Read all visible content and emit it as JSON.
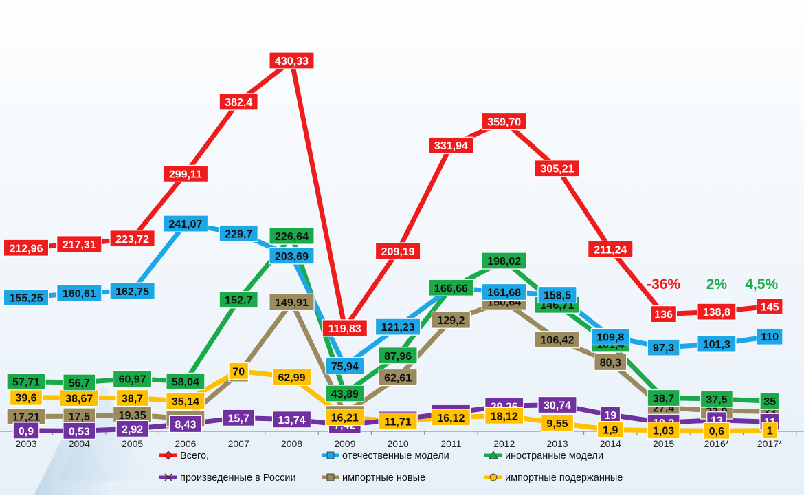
{
  "chart_data": {
    "type": "line",
    "title": "",
    "xlabel": "",
    "ylabel": "",
    "x": [
      "2003",
      "2004",
      "2005",
      "2006",
      "2007",
      "2008",
      "2009",
      "2010",
      "2011",
      "2012",
      "2013",
      "2014",
      "2015",
      "2016*",
      "2017*"
    ],
    "ylim": [
      0,
      450
    ],
    "grid": false,
    "legend_position": "bottom",
    "series": [
      {
        "name": "Всего,",
        "color": "#ee1c1c",
        "marker": "diamond",
        "values": [
          212.96,
          217.31,
          223.72,
          299.11,
          382.4,
          430.33,
          119.83,
          209.19,
          331.94,
          359.7,
          305.21,
          211.24,
          136,
          138.8,
          145
        ],
        "labels": [
          "212,96",
          "217,31",
          "223,72",
          "299,11",
          "382,4",
          "430,33",
          "119,83",
          "209,19",
          "331,94",
          "359,70",
          "305,21",
          "211,24",
          "136",
          "138,8",
          "145"
        ]
      },
      {
        "name": "отечественные модели",
        "color": "#1ea7e6",
        "marker": "square",
        "values": [
          155.25,
          160.61,
          162.75,
          241.07,
          229.7,
          203.69,
          75.94,
          121.23,
          166.66,
          161.68,
          158.5,
          109.8,
          97.3,
          101.3,
          110
        ],
        "labels": [
          "155,25",
          "160,61",
          "162,75",
          "241,07",
          "229,7",
          "203,69",
          "75,94",
          "121,23",
          null,
          "161,68",
          "158,5",
          "109,8",
          "97,3",
          "101,3",
          "110"
        ]
      },
      {
        "name": "иностранные модели",
        "color": "#1aaa4a",
        "marker": "triangle",
        "values": [
          57.71,
          56.7,
          60.97,
          58.04,
          152.7,
          226.64,
          43.89,
          87.96,
          166.66,
          198.02,
          146.71,
          101.4,
          38.7,
          37.5,
          35
        ],
        "labels": [
          "57,71",
          "56,7",
          "60,97",
          "58,04",
          "152,7",
          "226,64",
          "43,89",
          "87,96",
          "166,66",
          "198,02",
          "146,71",
          "101,4",
          "38,7",
          "37,5",
          "35"
        ]
      },
      {
        "name": "произведенные в России",
        "color": "#7030a0",
        "marker": "cross",
        "values": [
          0.9,
          0.53,
          2.92,
          8.43,
          15.7,
          13.74,
          7.42,
          13.64,
          21.34,
          29.26,
          30.74,
          19,
          10.2,
          13,
          11
        ],
        "labels": [
          "0,9",
          "0,53",
          "2,92",
          "8,43",
          "15,7",
          "13,74",
          "7,42",
          "13,64",
          "21,34",
          "29,26",
          "30,74",
          "19",
          "10,2",
          "13",
          "11"
        ]
      },
      {
        "name": "импортные новые",
        "color": "#9a8a5e",
        "marker": "square",
        "values": [
          17.21,
          17.5,
          19.35,
          14.47,
          67,
          149.91,
          20.26,
          62.61,
          129.2,
          150.64,
          106.42,
          80.3,
          27.4,
          23.9,
          23
        ],
        "labels": [
          "17,21",
          "17,5",
          "19,35",
          "14,47",
          "67",
          "149,91",
          "20,26",
          "62,61",
          "129,2",
          "150,64",
          "106,42",
          "80,3",
          "27,4",
          "23,9",
          "23"
        ]
      },
      {
        "name": "импортные подержанные",
        "color": "#ffc000",
        "marker": "circle",
        "values": [
          39.6,
          38.67,
          38.7,
          35.14,
          70,
          62.99,
          16.21,
          11.71,
          16.12,
          18.12,
          9.55,
          1.9,
          1.03,
          0.6,
          1
        ],
        "labels": [
          "39,6",
          "38,67",
          "38,7",
          "35,14",
          "70",
          "62,99",
          "16,21",
          "11,71",
          "16,12",
          "18,12",
          "9,55",
          "1,9",
          "1,03",
          "0,6",
          "1"
        ]
      }
    ],
    "annotations": [
      {
        "text": "-36%",
        "color": "#ee1c1c",
        "x": "2015"
      },
      {
        "text": "2%",
        "color": "#1aaa4a",
        "x": "2016*"
      },
      {
        "text": "4,5%",
        "color": "#1aaa4a",
        "x": "2017*"
      }
    ]
  }
}
